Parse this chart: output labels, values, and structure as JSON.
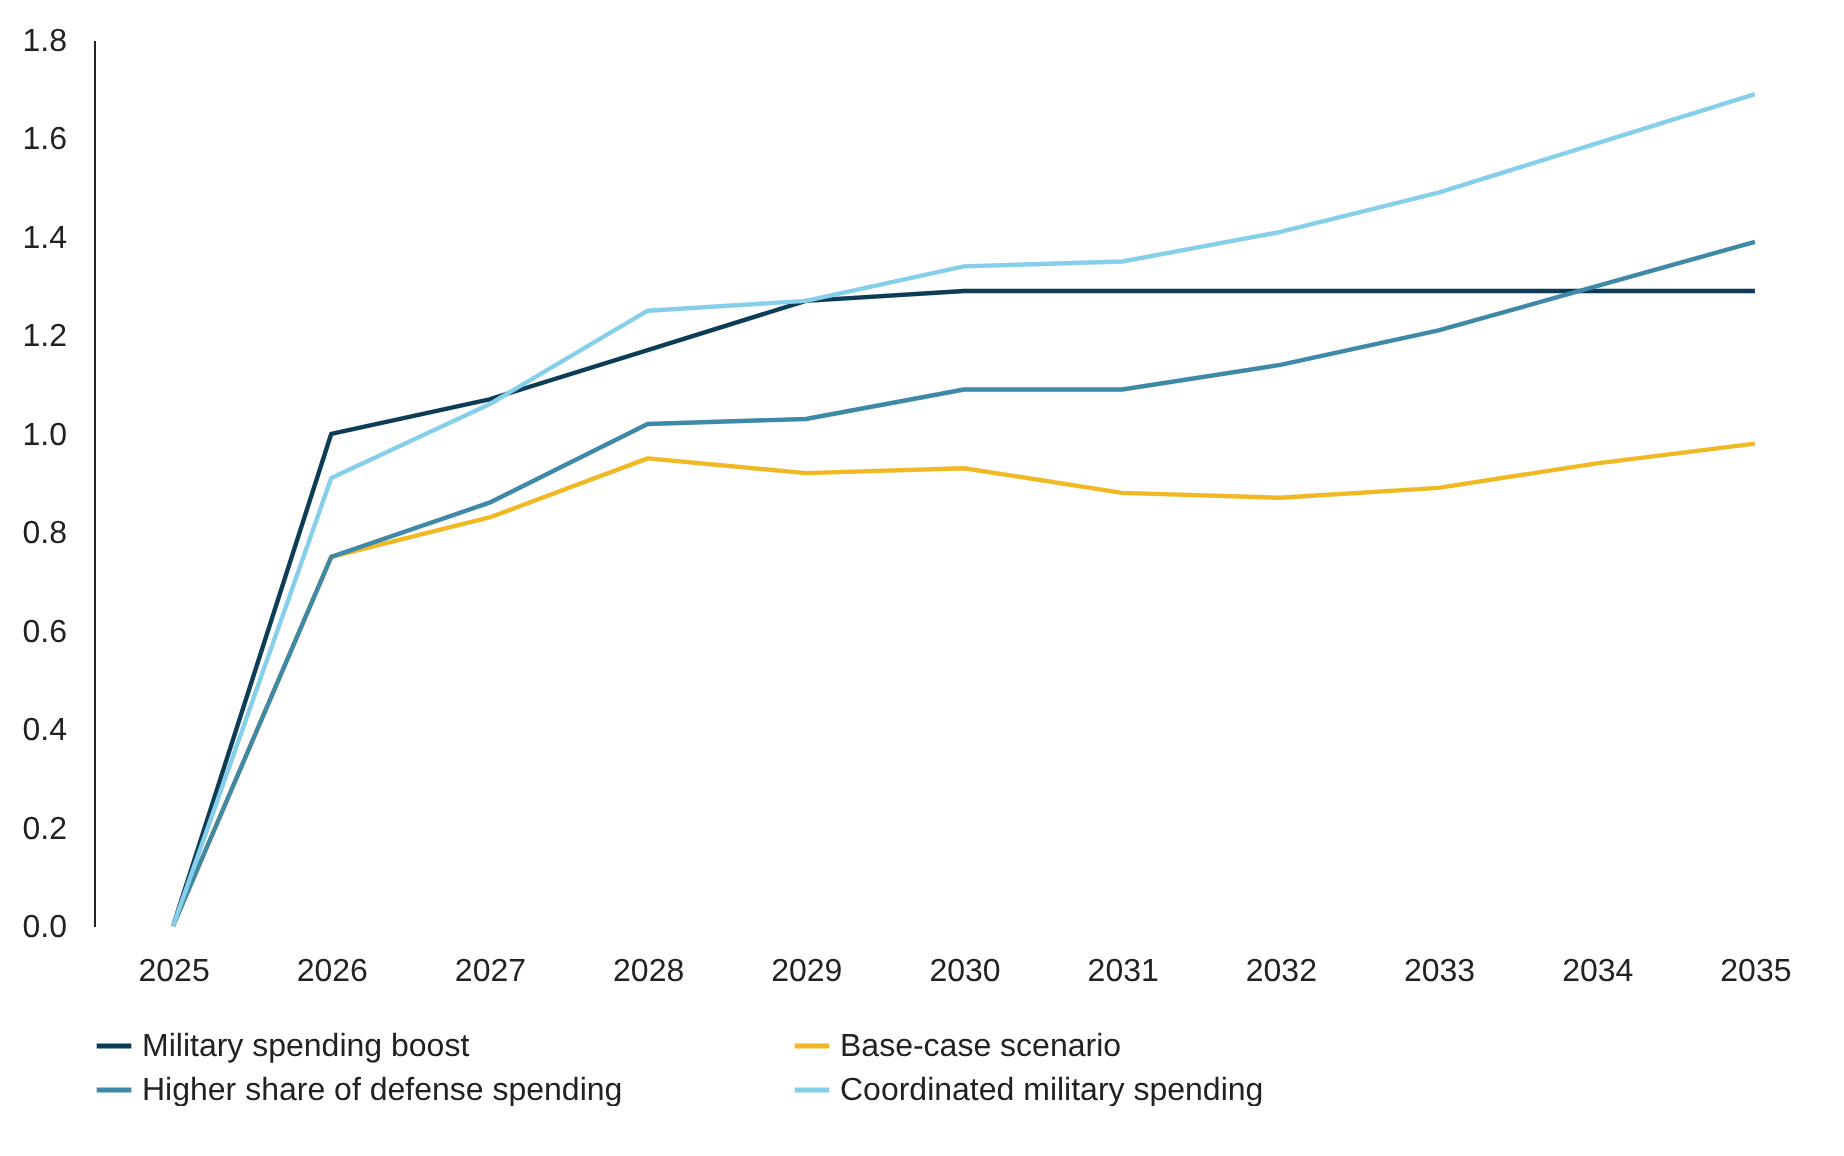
{
  "chart_data": {
    "type": "line",
    "categories": [
      "2025",
      "2026",
      "2027",
      "2028",
      "2029",
      "2030",
      "2031",
      "2032",
      "2033",
      "2034",
      "2035"
    ],
    "series": [
      {
        "name": "Military spending boost",
        "color": "#0d3d56",
        "values": [
          0,
          1.0,
          1.07,
          1.17,
          1.27,
          1.29,
          1.29,
          1.29,
          1.29,
          1.29,
          1.29
        ]
      },
      {
        "name": "Base-case scenario",
        "color": "#f0b823",
        "values": [
          0,
          0.75,
          0.83,
          0.95,
          0.92,
          0.93,
          0.88,
          0.87,
          0.89,
          0.94,
          0.98
        ]
      },
      {
        "name": "Higher share of defense spending",
        "color": "#3e88a8",
        "values": [
          0,
          0.75,
          0.86,
          1.02,
          1.03,
          1.09,
          1.09,
          1.14,
          1.21,
          1.3,
          1.39
        ]
      },
      {
        "name": "Coordinated military spending",
        "color": "#86cfea",
        "values": [
          0,
          0.91,
          1.06,
          1.25,
          1.27,
          1.34,
          1.35,
          1.41,
          1.49,
          1.59,
          1.69
        ]
      }
    ],
    "ylim": [
      0,
      1.8
    ],
    "yticks": [
      {
        "value": 0,
        "label": "0.0"
      },
      {
        "value": 0.2,
        "label": "0.2"
      },
      {
        "value": 0.4,
        "label": "0.4"
      },
      {
        "value": 0.6,
        "label": "0.6"
      },
      {
        "value": 0.8,
        "label": "0.8"
      },
      {
        "value": 1,
        "label": "1.0"
      },
      {
        "value": 1.2,
        "label": "1.2"
      },
      {
        "value": 1.4,
        "label": "1.4"
      },
      {
        "value": 1.6,
        "label": "1.6"
      },
      {
        "value": 1.8,
        "label": "1.8"
      }
    ],
    "grid": false,
    "legend": "bottom",
    "marker": "none",
    "line_style": "solid"
  }
}
